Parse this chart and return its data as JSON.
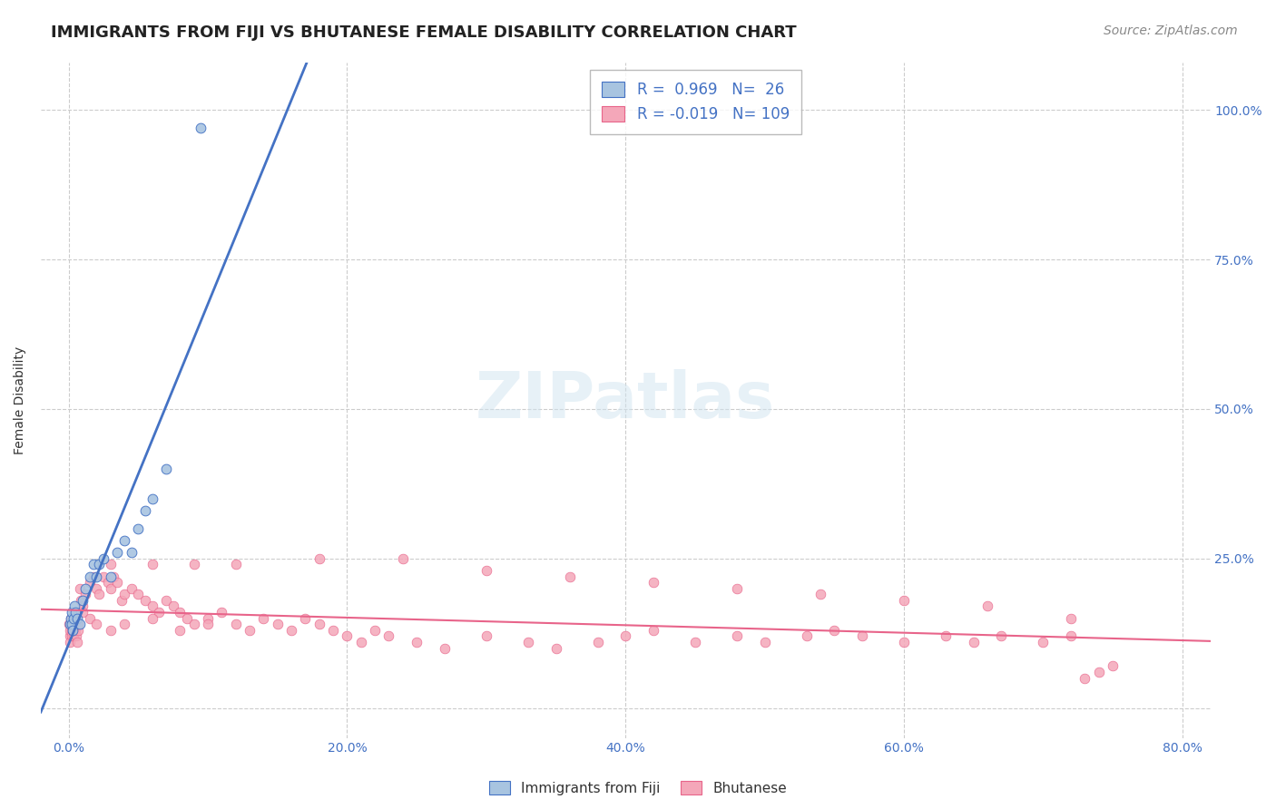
{
  "title": "IMMIGRANTS FROM FIJI VS BHUTANESE FEMALE DISABILITY CORRELATION CHART",
  "source": "Source: ZipAtlas.com",
  "xlabel_bottom": "",
  "ylabel": "Female Disability",
  "x_tick_labels": [
    "0.0%",
    "20.0%",
    "40.0%",
    "60.0%",
    "80.0%"
  ],
  "x_tick_vals": [
    0.0,
    20.0,
    40.0,
    60.0,
    80.0
  ],
  "y_tick_labels": [
    "100.0%",
    "75.0%",
    "50.0%",
    "25.0%",
    ""
  ],
  "y_tick_vals": [
    100.0,
    75.0,
    50.0,
    25.0,
    0.0
  ],
  "xlim": [
    -2,
    82
  ],
  "ylim": [
    -5,
    108
  ],
  "fiji_R": 0.969,
  "fiji_N": 26,
  "bhutanese_R": -0.019,
  "bhutanese_N": 109,
  "fiji_color": "#a8c4e0",
  "fiji_line_color": "#4472c4",
  "bhutanese_color": "#f4a7b9",
  "bhutanese_line_color": "#e8648a",
  "legend_label_fiji": "Immigrants from Fiji",
  "legend_label_bhutanese": "Bhutanese",
  "watermark": "ZIPatlas",
  "fiji_scatter_x": [
    0.1,
    0.15,
    0.2,
    0.25,
    0.3,
    0.35,
    0.4,
    0.5,
    0.6,
    0.8,
    1.0,
    1.2,
    1.5,
    1.8,
    2.0,
    2.2,
    2.5,
    3.0,
    3.5,
    4.0,
    4.5,
    5.0,
    5.5,
    6.0,
    7.0,
    9.5
  ],
  "fiji_scatter_y": [
    14,
    15,
    16,
    14,
    13,
    15,
    17,
    16,
    15,
    14,
    18,
    20,
    22,
    24,
    22,
    24,
    25,
    22,
    26,
    28,
    26,
    30,
    33,
    35,
    40,
    97
  ],
  "bhutanese_scatter_x": [
    0.05,
    0.08,
    0.1,
    0.12,
    0.15,
    0.18,
    0.2,
    0.22,
    0.25,
    0.28,
    0.3,
    0.32,
    0.35,
    0.38,
    0.4,
    0.45,
    0.5,
    0.55,
    0.6,
    0.65,
    0.7,
    0.8,
    0.9,
    1.0,
    1.2,
    1.5,
    1.8,
    2.0,
    2.2,
    2.5,
    2.8,
    3.0,
    3.2,
    3.5,
    3.8,
    4.0,
    4.5,
    5.0,
    5.5,
    6.0,
    6.5,
    7.0,
    7.5,
    8.0,
    8.5,
    9.0,
    10.0,
    11.0,
    12.0,
    13.0,
    14.0,
    15.0,
    16.0,
    17.0,
    18.0,
    19.0,
    20.0,
    21.0,
    22.0,
    23.0,
    25.0,
    27.0,
    30.0,
    33.0,
    35.0,
    38.0,
    40.0,
    42.0,
    45.0,
    48.0,
    50.0,
    53.0,
    55.0,
    57.0,
    60.0,
    63.0,
    65.0,
    67.0,
    70.0,
    72.0,
    73.0,
    74.0,
    75.0,
    3.0,
    6.0,
    9.0,
    12.0,
    18.0,
    24.0,
    30.0,
    36.0,
    42.0,
    48.0,
    54.0,
    60.0,
    66.0,
    72.0,
    0.15,
    0.3,
    0.5,
    0.7,
    1.0,
    1.5,
    2.0,
    3.0,
    4.0,
    6.0,
    8.0,
    10.0
  ],
  "bhutanese_scatter_y": [
    14,
    12,
    11,
    13,
    15,
    14,
    13,
    12,
    14,
    13,
    15,
    12,
    14,
    13,
    15,
    14,
    13,
    12,
    11,
    13,
    14,
    20,
    18,
    17,
    19,
    21,
    22,
    20,
    19,
    22,
    21,
    20,
    22,
    21,
    18,
    19,
    20,
    19,
    18,
    17,
    16,
    18,
    17,
    16,
    15,
    14,
    15,
    16,
    14,
    13,
    15,
    14,
    13,
    15,
    14,
    13,
    12,
    11,
    13,
    12,
    11,
    10,
    12,
    11,
    10,
    11,
    12,
    13,
    11,
    12,
    11,
    12,
    13,
    12,
    11,
    12,
    11,
    12,
    11,
    12,
    5,
    6,
    7,
    24,
    24,
    24,
    24,
    25,
    25,
    23,
    22,
    21,
    20,
    19,
    18,
    17,
    15,
    14,
    13,
    15,
    14,
    16,
    15,
    14,
    13,
    14,
    15,
    13,
    14
  ],
  "title_fontsize": 13,
  "axis_label_fontsize": 10,
  "tick_fontsize": 10,
  "source_fontsize": 10
}
